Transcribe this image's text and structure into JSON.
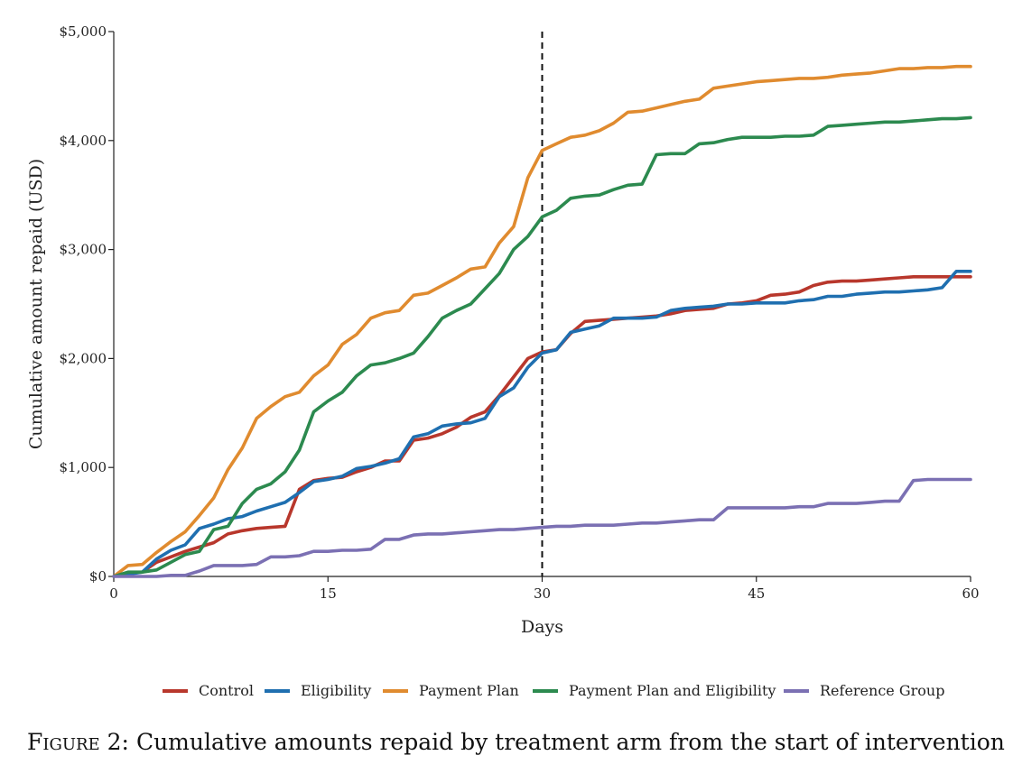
{
  "caption": {
    "label": "Figure 2:",
    "text": "Cumulative amounts repaid by treatment arm from the start of intervention"
  },
  "chart_data": {
    "type": "line",
    "xlabel": "Days",
    "ylabel": "Cumulative amount repaid (USD)",
    "xlim": [
      0,
      60
    ],
    "ylim": [
      0,
      5000
    ],
    "xticks": [
      0,
      15,
      30,
      45,
      60
    ],
    "yticks": [
      0,
      1000,
      2000,
      3000,
      4000,
      5000
    ],
    "ytick_labels": [
      "$0",
      "$1,000",
      "$2,000",
      "$3,000",
      "$4,000",
      "$5,000"
    ],
    "xtick_labels": [
      "0",
      "15",
      "30",
      "45",
      "60"
    ],
    "vline": {
      "x": 30,
      "style": "dashed",
      "color": "#111111"
    },
    "grid": false,
    "legend_position": "bottom",
    "series": [
      {
        "name": "Control",
        "color": "#b8372c",
        "x": [
          0,
          1,
          2,
          3,
          4,
          5,
          6,
          7,
          8,
          9,
          10,
          11,
          12,
          13,
          14,
          15,
          16,
          17,
          18,
          19,
          20,
          21,
          22,
          23,
          24,
          25,
          26,
          27,
          28,
          29,
          30,
          31,
          32,
          33,
          34,
          35,
          36,
          37,
          38,
          39,
          40,
          41,
          42,
          43,
          44,
          45,
          46,
          47,
          48,
          49,
          50,
          51,
          52,
          53,
          54,
          55,
          56,
          57,
          58,
          59,
          60
        ],
        "y": [
          0,
          30,
          40,
          130,
          180,
          230,
          270,
          310,
          390,
          420,
          440,
          450,
          460,
          800,
          880,
          900,
          910,
          960,
          1000,
          1060,
          1060,
          1250,
          1270,
          1310,
          1370,
          1460,
          1510,
          1660,
          1830,
          2000,
          2060,
          2080,
          2230,
          2340,
          2350,
          2360,
          2370,
          2380,
          2390,
          2410,
          2440,
          2450,
          2460,
          2500,
          2510,
          2530,
          2580,
          2590,
          2610,
          2670,
          2700,
          2710,
          2710,
          2720,
          2730,
          2740,
          2750,
          2750,
          2750,
          2750,
          2750
        ]
      },
      {
        "name": "Eligibility",
        "color": "#1f6fb0",
        "x": [
          0,
          1,
          2,
          3,
          4,
          5,
          6,
          7,
          8,
          9,
          10,
          11,
          12,
          13,
          14,
          15,
          16,
          17,
          18,
          19,
          20,
          21,
          22,
          23,
          24,
          25,
          26,
          27,
          28,
          29,
          30,
          31,
          32,
          33,
          34,
          35,
          36,
          37,
          38,
          39,
          40,
          41,
          42,
          43,
          44,
          45,
          46,
          47,
          48,
          49,
          50,
          51,
          52,
          53,
          54,
          55,
          56,
          57,
          58,
          59,
          60
        ],
        "y": [
          0,
          20,
          40,
          160,
          240,
          290,
          440,
          480,
          530,
          550,
          600,
          640,
          680,
          770,
          870,
          890,
          920,
          990,
          1010,
          1040,
          1080,
          1280,
          1310,
          1380,
          1400,
          1410,
          1450,
          1650,
          1730,
          1920,
          2050,
          2080,
          2240,
          2270,
          2300,
          2370,
          2370,
          2370,
          2380,
          2440,
          2460,
          2470,
          2480,
          2500,
          2500,
          2510,
          2510,
          2510,
          2530,
          2540,
          2570,
          2570,
          2590,
          2600,
          2610,
          2610,
          2620,
          2630,
          2650,
          2800,
          2800
        ]
      },
      {
        "name": "Payment Plan",
        "color": "#e08b2f",
        "x": [
          0,
          1,
          2,
          3,
          4,
          5,
          6,
          7,
          8,
          9,
          10,
          11,
          12,
          13,
          14,
          15,
          16,
          17,
          18,
          19,
          20,
          21,
          22,
          23,
          24,
          25,
          26,
          27,
          28,
          29,
          30,
          31,
          32,
          33,
          34,
          35,
          36,
          37,
          38,
          39,
          40,
          41,
          42,
          43,
          44,
          45,
          46,
          47,
          48,
          49,
          50,
          51,
          52,
          53,
          54,
          55,
          56,
          57,
          58,
          59,
          60
        ],
        "y": [
          0,
          100,
          110,
          220,
          320,
          410,
          560,
          720,
          980,
          1180,
          1450,
          1560,
          1650,
          1690,
          1840,
          1940,
          2130,
          2220,
          2370,
          2420,
          2440,
          2580,
          2600,
          2670,
          2740,
          2820,
          2840,
          3060,
          3210,
          3660,
          3910,
          3970,
          4030,
          4050,
          4090,
          4160,
          4260,
          4270,
          4300,
          4330,
          4360,
          4380,
          4480,
          4500,
          4520,
          4540,
          4550,
          4560,
          4570,
          4570,
          4580,
          4600,
          4610,
          4620,
          4640,
          4660,
          4660,
          4670,
          4670,
          4680,
          4680
        ]
      },
      {
        "name": "Payment Plan and Eligibility",
        "color": "#2c8a4f",
        "x": [
          0,
          1,
          2,
          3,
          4,
          5,
          6,
          7,
          8,
          9,
          10,
          11,
          12,
          13,
          14,
          15,
          16,
          17,
          18,
          19,
          20,
          21,
          22,
          23,
          24,
          25,
          26,
          27,
          28,
          29,
          30,
          31,
          32,
          33,
          34,
          35,
          36,
          37,
          38,
          39,
          40,
          41,
          42,
          43,
          44,
          45,
          46,
          47,
          48,
          49,
          50,
          51,
          52,
          53,
          54,
          55,
          56,
          57,
          58,
          59,
          60
        ],
        "y": [
          0,
          40,
          40,
          60,
          130,
          200,
          230,
          430,
          460,
          670,
          800,
          850,
          960,
          1160,
          1510,
          1610,
          1690,
          1840,
          1940,
          1960,
          2000,
          2050,
          2200,
          2370,
          2440,
          2500,
          2640,
          2780,
          3000,
          3120,
          3300,
          3360,
          3470,
          3490,
          3500,
          3550,
          3590,
          3600,
          3870,
          3880,
          3880,
          3970,
          3980,
          4010,
          4030,
          4030,
          4030,
          4040,
          4040,
          4050,
          4130,
          4140,
          4150,
          4160,
          4170,
          4170,
          4180,
          4190,
          4200,
          4200,
          4210
        ]
      },
      {
        "name": "Reference Group",
        "color": "#7b70b3",
        "x": [
          0,
          1,
          2,
          3,
          4,
          5,
          6,
          7,
          8,
          9,
          10,
          11,
          12,
          13,
          14,
          15,
          16,
          17,
          18,
          19,
          20,
          21,
          22,
          23,
          24,
          25,
          26,
          27,
          28,
          29,
          30,
          31,
          32,
          33,
          34,
          35,
          36,
          37,
          38,
          39,
          40,
          41,
          42,
          43,
          44,
          45,
          46,
          47,
          48,
          49,
          50,
          51,
          52,
          53,
          54,
          55,
          56,
          57,
          58,
          59,
          60
        ],
        "y": [
          0,
          0,
          0,
          0,
          10,
          10,
          50,
          100,
          100,
          100,
          110,
          180,
          180,
          190,
          230,
          230,
          240,
          240,
          250,
          340,
          340,
          380,
          390,
          390,
          400,
          410,
          420,
          430,
          430,
          440,
          450,
          460,
          460,
          470,
          470,
          470,
          480,
          490,
          490,
          500,
          510,
          520,
          520,
          630,
          630,
          630,
          630,
          630,
          640,
          640,
          670,
          670,
          670,
          680,
          690,
          690,
          880,
          890,
          890,
          890,
          890
        ]
      }
    ]
  }
}
